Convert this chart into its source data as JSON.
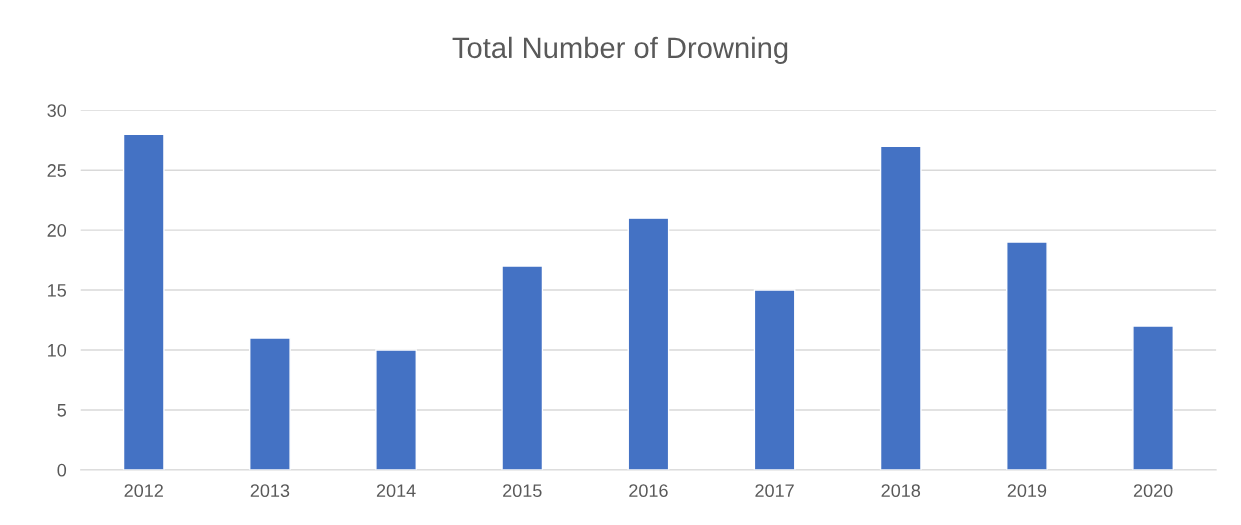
{
  "chart_data": {
    "type": "bar",
    "title": "Total Number of Drowning",
    "categories": [
      "2012",
      "2013",
      "2014",
      "2015",
      "2016",
      "2017",
      "2018",
      "2019",
      "2020"
    ],
    "values": [
      28,
      11,
      10,
      17,
      21,
      15,
      27,
      19,
      12
    ],
    "color": "#4472c4",
    "ylim": [
      0,
      30
    ],
    "yticks": [
      0,
      5,
      10,
      15,
      20,
      25,
      30
    ],
    "grid": "y",
    "legend": false
  }
}
